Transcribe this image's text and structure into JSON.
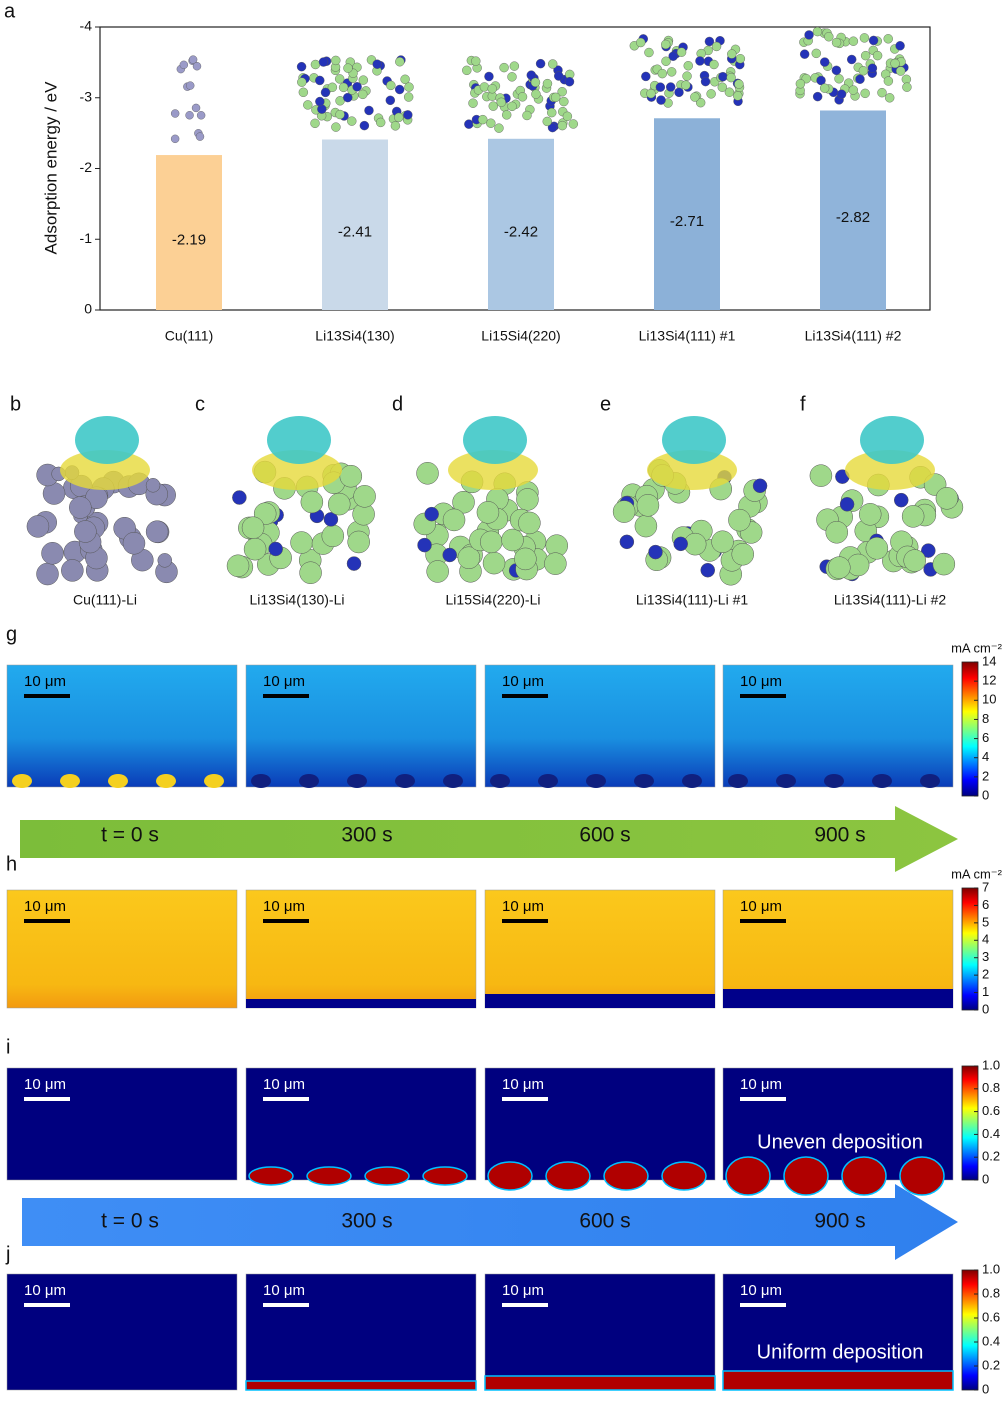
{
  "chart_data": {
    "type": "bar",
    "ylabel": "Adsorption energy / eV",
    "categories": [
      "Cu(111)",
      "Li13Si4(130)",
      "Li15Si4(220)",
      "Li13Si4(111) #1",
      "Li13Si4(111) #2"
    ],
    "values": [
      -2.19,
      -2.41,
      -2.42,
      -2.71,
      -2.82
    ],
    "colors": [
      "#fcd095",
      "#c9d9e9",
      "#abc7e3",
      "#8cb1d8",
      "#90b4da"
    ],
    "ylim": [
      0,
      -4
    ],
    "yticks": [
      0,
      -1,
      -2,
      -3,
      -4
    ]
  },
  "panel_labels": [
    "a",
    "b",
    "c",
    "d",
    "e",
    "f",
    "g",
    "h",
    "i",
    "j"
  ],
  "structure_captions": [
    "Cu(111)-Li",
    "Li13Si4(130)-Li",
    "Li15Si4(220)-Li",
    "Li13Si4(111)-Li #1",
    "Li13Si4(111)-Li #2"
  ],
  "scale_bar": "10 μm",
  "timelines": [
    [
      "t = 0 s",
      "300 s",
      "600 s",
      "900 s"
    ],
    [
      "t = 0 s",
      "300 s",
      "600 s",
      "900 s"
    ]
  ],
  "simulations": [
    {
      "colorbar": {
        "unit": "mA cm⁻²",
        "lim": [
          0,
          14
        ],
        "ticks": [
          0,
          2,
          4,
          6,
          8,
          10,
          12,
          14
        ]
      }
    },
    {
      "colorbar": {
        "unit": "mA cm⁻²",
        "lim": [
          0,
          7
        ],
        "ticks": [
          0,
          1,
          2,
          3,
          4,
          5,
          6,
          7
        ]
      }
    },
    {
      "colorbar": {
        "lim": [
          0,
          1
        ],
        "ticks": [
          0,
          0.2,
          0.4,
          0.6,
          0.8,
          {
            "value": 1,
            "label": "1.0"
          }
        ]
      },
      "annotation": "Uneven deposition"
    },
    {
      "colorbar": {
        "lim": [
          0,
          1
        ],
        "ticks": [
          0,
          0.2,
          0.4,
          0.6,
          0.8,
          {
            "value": 1,
            "label": "1.0"
          }
        ]
      },
      "annotation": "Uniform deposition"
    }
  ]
}
